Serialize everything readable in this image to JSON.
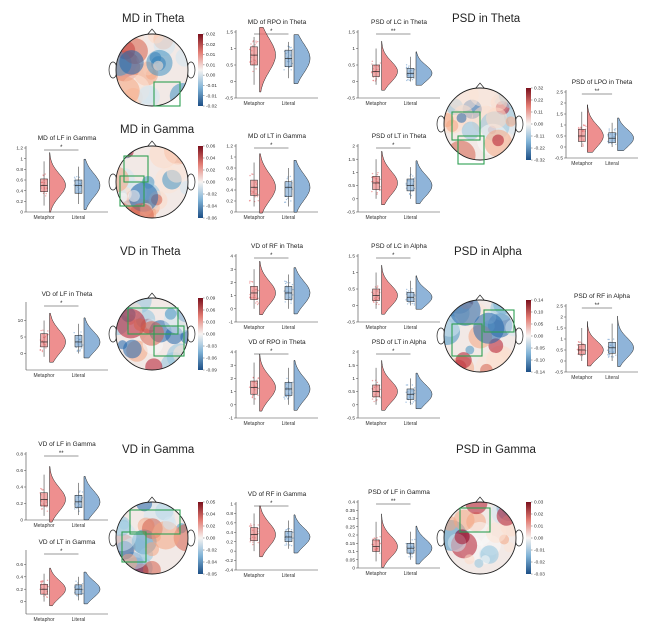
{
  "colors": {
    "metaphor": "#e8696a",
    "literal": "#6a9bcc",
    "roi": "#2ea052"
  },
  "section_titles": {
    "md_theta": "MD in Theta",
    "md_gamma": "MD in Gamma",
    "psd_theta": "PSD in Theta",
    "vd_theta": "VD in Theta",
    "psd_alpha": "PSD in Alpha",
    "vd_gamma": "VD in Gamma",
    "psd_gamma": "PSD in Gamma"
  },
  "chart_data": [
    {
      "id": "md_rpo_theta",
      "type": "box+violin",
      "title": "MD of RPO in Theta",
      "categories": [
        "Metaphor",
        "Literal"
      ],
      "significance": "*",
      "ylim": [
        -0.5,
        1.5
      ],
      "yticks": [
        "-0.5",
        "0",
        "0.5",
        "1",
        "1.5"
      ],
      "medians": [
        0.8,
        0.7
      ],
      "q1": [
        0.5,
        0.45
      ],
      "q3": [
        1.05,
        0.95
      ],
      "whisker_low": [
        -0.1,
        0.1
      ],
      "whisker_high": [
        1.35,
        1.2
      ]
    },
    {
      "id": "psd_lc_theta",
      "type": "box+violin",
      "title": "PSD of LC in Theta",
      "categories": [
        "Metaphor",
        "Literal"
      ],
      "significance": "**",
      "ylim": [
        -0.5,
        1.5
      ],
      "yticks": [
        "-0.5",
        "0",
        "0.5",
        "1",
        "1.5"
      ],
      "medians": [
        0.3,
        0.25
      ],
      "q1": [
        0.15,
        0.12
      ],
      "q3": [
        0.5,
        0.4
      ],
      "whisker_low": [
        -0.1,
        0.0
      ],
      "whisker_high": [
        1.0,
        0.75
      ]
    },
    {
      "id": "psd_lpo_theta",
      "type": "box+violin",
      "title": "PSD of LPO in Theta",
      "categories": [
        "Metaphor",
        "Literal"
      ],
      "significance": "**",
      "ylim": [
        -0.5,
        2.5
      ],
      "yticks": [
        "-0.5",
        "0",
        "0.5",
        "1",
        "1.5",
        "2",
        "2.5"
      ],
      "medians": [
        0.5,
        0.4
      ],
      "q1": [
        0.25,
        0.2
      ],
      "q3": [
        0.8,
        0.65
      ],
      "whisker_low": [
        0.0,
        0.0
      ],
      "whisker_high": [
        1.6,
        1.1
      ]
    },
    {
      "id": "md_lf_gamma",
      "type": "box+violin",
      "title": "MD of LF in Gamma",
      "categories": [
        "Metaphor",
        "Literal"
      ],
      "significance": "*",
      "ylim": [
        0,
        1.2
      ],
      "yticks": [
        "0",
        "0.2",
        "0.4",
        "0.6",
        "0.8",
        "1",
        "1.2"
      ],
      "medians": [
        0.5,
        0.5
      ],
      "q1": [
        0.38,
        0.35
      ],
      "q3": [
        0.62,
        0.6
      ],
      "whisker_low": [
        0.12,
        0.15
      ],
      "whisker_high": [
        0.95,
        0.85
      ]
    },
    {
      "id": "md_lt_gamma",
      "type": "box+violin",
      "title": "MD of LT in Gamma",
      "categories": [
        "Metaphor",
        "Literal"
      ],
      "significance": "*",
      "ylim": [
        0,
        1.2
      ],
      "yticks": [
        "0",
        "0.2",
        "0.4",
        "0.6",
        "0.8",
        "1",
        "1.2"
      ],
      "medians": [
        0.45,
        0.45
      ],
      "q1": [
        0.3,
        0.28
      ],
      "q3": [
        0.58,
        0.55
      ],
      "whisker_low": [
        0.1,
        0.1
      ],
      "whisker_high": [
        0.9,
        0.8
      ]
    },
    {
      "id": "psd_lt_theta",
      "type": "box+violin",
      "title": "PSD of LT in Theta",
      "categories": [
        "Metaphor",
        "Literal"
      ],
      "significance": "*",
      "ylim": [
        -0.5,
        2
      ],
      "yticks": [
        "-0.5",
        "0",
        "0.5",
        "1",
        "1.5",
        "2"
      ],
      "medians": [
        0.6,
        0.5
      ],
      "q1": [
        0.35,
        0.3
      ],
      "q3": [
        0.85,
        0.75
      ],
      "whisker_low": [
        0.0,
        0.0
      ],
      "whisker_high": [
        1.5,
        1.2
      ]
    },
    {
      "id": "vd_lf_theta",
      "type": "box+violin",
      "title": "VD of LF in Theta",
      "categories": [
        "Metaphor",
        "Literal"
      ],
      "significance": "*",
      "ylim": [
        -5,
        15
      ],
      "yticks": [
        "0",
        "5",
        "10"
      ],
      "medians": [
        3.5,
        3.5
      ],
      "q1": [
        2,
        2
      ],
      "q3": [
        6,
        5.5
      ],
      "whisker_low": [
        -1,
        0
      ],
      "whisker_high": [
        10,
        9
      ]
    },
    {
      "id": "vd_rf_theta",
      "type": "box+violin",
      "title": "VD of RF in Theta",
      "categories": [
        "Metaphor",
        "Literal"
      ],
      "significance": "*",
      "ylim": [
        -1,
        4
      ],
      "yticks": [
        "-1",
        "0",
        "1",
        "2",
        "3",
        "4"
      ],
      "medians": [
        1.2,
        1.2
      ],
      "q1": [
        0.7,
        0.7
      ],
      "q3": [
        1.7,
        1.7
      ],
      "whisker_low": [
        0,
        0
      ],
      "whisker_high": [
        3,
        2.6
      ]
    },
    {
      "id": "psd_lc_alpha",
      "type": "box+violin",
      "title": "PSD of LC in Alpha",
      "categories": [
        "Metaphor",
        "Literal"
      ],
      "significance": "*",
      "ylim": [
        -0.5,
        1.5
      ],
      "yticks": [
        "-0.5",
        "0",
        "0.5",
        "1",
        "1.5"
      ],
      "medians": [
        0.3,
        0.25
      ],
      "q1": [
        0.15,
        0.12
      ],
      "q3": [
        0.5,
        0.4
      ],
      "whisker_low": [
        -0.1,
        0.0
      ],
      "whisker_high": [
        1.0,
        0.75
      ]
    },
    {
      "id": "psd_rf_alpha",
      "type": "box+violin",
      "title": "PSD of RF in Alpha",
      "categories": [
        "Metaphor",
        "Literal"
      ],
      "significance": "**",
      "ylim": [
        -0.5,
        2.5
      ],
      "yticks": [
        "-0.5",
        "0",
        "0.5",
        "1",
        "1.5",
        "2",
        "2.5"
      ],
      "medians": [
        0.5,
        0.6
      ],
      "q1": [
        0.3,
        0.35
      ],
      "q3": [
        0.75,
        0.85
      ],
      "whisker_low": [
        0.0,
        0.0
      ],
      "whisker_high": [
        1.5,
        1.7
      ]
    },
    {
      "id": "vd_rpo_theta",
      "type": "box+violin",
      "title": "VD of RPO in Theta",
      "categories": [
        "Metaphor",
        "Literal"
      ],
      "significance": "*",
      "ylim": [
        -1,
        4
      ],
      "yticks": [
        "-1",
        "0",
        "1",
        "2",
        "3",
        "4"
      ],
      "medians": [
        1.3,
        1.2
      ],
      "q1": [
        0.8,
        0.7
      ],
      "q3": [
        1.8,
        1.7
      ],
      "whisker_low": [
        0,
        0
      ],
      "whisker_high": [
        3.2,
        2.8
      ]
    },
    {
      "id": "psd_lt_alpha",
      "type": "box+violin",
      "title": "PSD of LT in Alpha",
      "categories": [
        "Metaphor",
        "Literal"
      ],
      "significance": "*",
      "ylim": [
        -0.5,
        2
      ],
      "yticks": [
        "-0.5",
        "0",
        "0.5",
        "1",
        "1.5",
        "2"
      ],
      "medians": [
        0.5,
        0.4
      ],
      "q1": [
        0.3,
        0.2
      ],
      "q3": [
        0.75,
        0.6
      ],
      "whisker_low": [
        0.0,
        0.0
      ],
      "whisker_high": [
        1.4,
        1.0
      ]
    },
    {
      "id": "vd_lf_gamma",
      "type": "box+violin",
      "title": "VD of LF in Gamma",
      "categories": [
        "Metaphor",
        "Literal"
      ],
      "significance": "**",
      "ylim": [
        0,
        0.8
      ],
      "yticks": [
        "0",
        "0.2",
        "0.4",
        "0.6",
        "0.8"
      ],
      "medians": [
        0.25,
        0.22
      ],
      "q1": [
        0.17,
        0.15
      ],
      "q3": [
        0.33,
        0.3
      ],
      "whisker_low": [
        0.05,
        0.06
      ],
      "whisker_high": [
        0.55,
        0.45
      ]
    },
    {
      "id": "vd_rf_gamma",
      "type": "box+violin",
      "title": "VD of RF in Gamma",
      "categories": [
        "Metaphor",
        "Literal"
      ],
      "significance": "*",
      "ylim": [
        -0.4,
        1
      ],
      "yticks": [
        "-0.4",
        "-0.2",
        "0",
        "0.2",
        "0.4",
        "0.6",
        "0.8",
        "1"
      ],
      "medians": [
        0.35,
        0.3
      ],
      "q1": [
        0.22,
        0.2
      ],
      "q3": [
        0.5,
        0.42
      ],
      "whisker_low": [
        0.0,
        0.05
      ],
      "whisker_high": [
        0.8,
        0.65
      ]
    },
    {
      "id": "psd_lf_gamma",
      "type": "box+violin",
      "title": "PSD of LF in Gamma",
      "categories": [
        "Metaphor",
        "Literal"
      ],
      "significance": "**",
      "ylim": [
        0,
        0.4
      ],
      "yticks": [
        "0",
        "0.05",
        "0.1",
        "0.15",
        "0.2",
        "0.25",
        "0.3",
        "0.35",
        "0.4"
      ],
      "medians": [
        0.13,
        0.12
      ],
      "q1": [
        0.1,
        0.09
      ],
      "q3": [
        0.17,
        0.15
      ],
      "whisker_low": [
        0.04,
        0.05
      ],
      "whisker_high": [
        0.28,
        0.22
      ]
    },
    {
      "id": "vd_lt_gamma",
      "type": "box+violin",
      "title": "VD of LT in Gamma",
      "categories": [
        "Metaphor",
        "Literal"
      ],
      "significance": "*",
      "ylim": [
        -0.2,
        0.8
      ],
      "yticks": [
        "0",
        "0.2",
        "0.4",
        "0.6"
      ],
      "medians": [
        0.2,
        0.2
      ],
      "q1": [
        0.12,
        0.12
      ],
      "q3": [
        0.28,
        0.27
      ],
      "whisker_low": [
        0.0,
        0.02
      ],
      "whisker_high": [
        0.45,
        0.4
      ]
    }
  ],
  "topomaps": [
    {
      "id": "topo_md_theta",
      "colorbar": [
        "0.02",
        "0.02",
        "0.01",
        "0.01",
        "0.00",
        "-0.01",
        "-0.01",
        "-0.02"
      ],
      "colorbar_values": [
        0.02,
        0.015,
        0.01,
        0.005,
        0,
        -0.005,
        -0.01,
        -0.02
      ]
    },
    {
      "id": "topo_md_gamma",
      "colorbar": [
        "0.06",
        "0.04",
        "0.02",
        "0.00",
        "-0.02",
        "-0.04",
        "-0.06"
      ],
      "colorbar_values": [
        0.06,
        0.04,
        0.02,
        0,
        -0.02,
        -0.04,
        -0.06
      ]
    },
    {
      "id": "topo_psd_theta",
      "colorbar": [
        "0.32",
        "0.22",
        "0.11",
        "0.00",
        "-0.11",
        "-0.22",
        "-0.32"
      ],
      "colorbar_values": [
        0.32,
        0.22,
        0.11,
        0,
        -0.11,
        -0.22,
        -0.32
      ]
    },
    {
      "id": "topo_vd_theta",
      "colorbar": [
        "0.09",
        "0.06",
        "0.03",
        "0.00",
        "-0.03",
        "-0.06",
        "-0.09"
      ],
      "colorbar_values": [
        0.09,
        0.06,
        0.03,
        0,
        -0.03,
        -0.06,
        -0.09
      ]
    },
    {
      "id": "topo_psd_alpha",
      "colorbar": [
        "0.14",
        "0.10",
        "0.05",
        "0.00",
        "-0.05",
        "-0.10",
        "-0.14"
      ],
      "colorbar_values": [
        0.14,
        0.1,
        0.05,
        0,
        -0.05,
        -0.1,
        -0.14
      ]
    },
    {
      "id": "topo_vd_gamma",
      "colorbar": [
        "0.05",
        "0.04",
        "0.02",
        "0.00",
        "-0.02",
        "-0.04",
        "-0.05"
      ],
      "colorbar_values": [
        0.05,
        0.04,
        0.02,
        0,
        -0.02,
        -0.04,
        -0.05
      ]
    },
    {
      "id": "topo_psd_gamma",
      "colorbar": [
        "0.03",
        "0.02",
        "0.01",
        "0.00",
        "-0.01",
        "-0.02",
        "-0.03"
      ],
      "colorbar_values": [
        0.03,
        0.02,
        0.01,
        0,
        -0.01,
        -0.02,
        -0.03
      ]
    }
  ]
}
